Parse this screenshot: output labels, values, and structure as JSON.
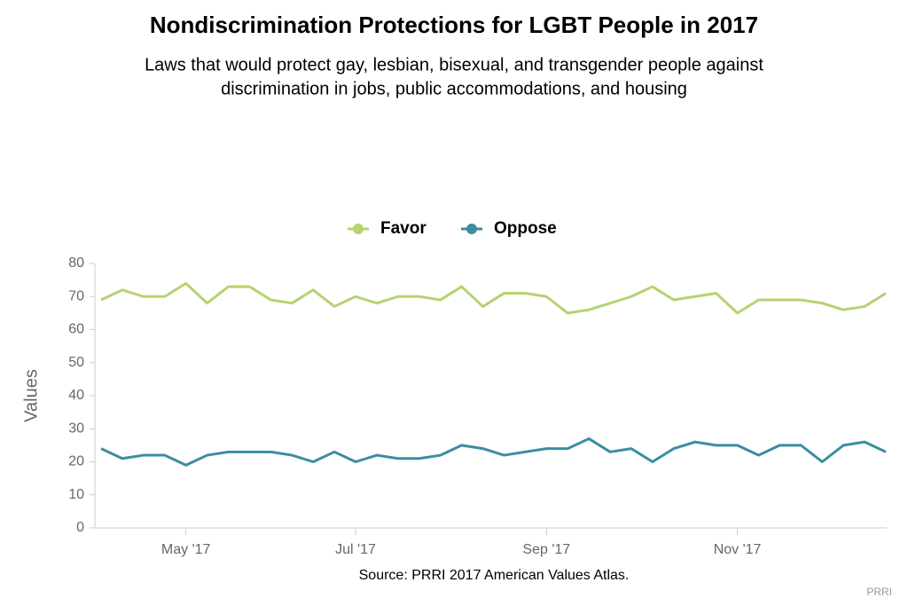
{
  "chart_data": {
    "type": "line",
    "title": "Nondiscrimination Protections for LGBT People in 2017",
    "subtitle": [
      "Laws that would protect gay, lesbian, bisexual, and transgender people against",
      "discrimination in jobs, public accommodations, and housing"
    ],
    "y_label": "Values",
    "source": "Source: PRRI 2017 American Values Atlas.",
    "credit": "PRRI",
    "categories": [
      null,
      null,
      null,
      null,
      "May '17",
      null,
      null,
      null,
      null,
      null,
      null,
      null,
      "Jul '17",
      null,
      null,
      null,
      null,
      null,
      null,
      null,
      null,
      "Sep '17",
      null,
      null,
      null,
      null,
      null,
      null,
      null,
      null,
      "Nov '17",
      null,
      null,
      null,
      null,
      null,
      null,
      null
    ],
    "series": [
      {
        "name": "Favor",
        "color": "#b5d36f",
        "values": [
          69,
          72,
          70,
          70,
          74,
          68,
          73,
          73,
          69,
          68,
          72,
          67,
          70,
          68,
          70,
          70,
          69,
          73,
          67,
          71,
          71,
          70,
          65,
          66,
          68,
          70,
          73,
          69,
          70,
          71,
          65,
          69,
          69,
          69,
          68,
          66,
          67,
          71
        ]
      },
      {
        "name": "Oppose",
        "color": "#3a8ea0",
        "values": [
          24,
          21,
          22,
          22,
          19,
          22,
          23,
          23,
          23,
          22,
          20,
          23,
          20,
          22,
          21,
          21,
          22,
          25,
          24,
          22,
          23,
          24,
          24,
          27,
          23,
          24,
          20,
          24,
          26,
          25,
          25,
          22,
          25,
          25,
          20,
          25,
          26,
          23
        ]
      }
    ],
    "ylim": [
      0,
      80
    ],
    "yticks": [
      0,
      10,
      20,
      30,
      40,
      50,
      60,
      70,
      80
    ],
    "grid": false,
    "legend": "top"
  }
}
